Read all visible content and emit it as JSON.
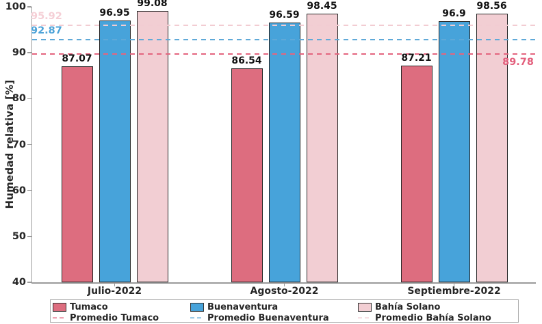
{
  "chart_data": {
    "type": "bar",
    "title": "",
    "ylabel": "Humedad relativa [%]",
    "xlabel": "",
    "ylim": [
      40,
      100
    ],
    "yticks": [
      100,
      90,
      80,
      70,
      60,
      50,
      40
    ],
    "categories": [
      "Julio-2022",
      "Agosto-2022",
      "Septiembre-2022"
    ],
    "series": [
      {
        "name": "Tumaco",
        "color": "#dd6d7f",
        "values": [
          87.07,
          86.54,
          87.21
        ]
      },
      {
        "name": "Buenaventura",
        "color": "#47a3da",
        "values": [
          96.95,
          96.59,
          96.9
        ]
      },
      {
        "name": "Bahía Solano",
        "color": "#f2ced3",
        "values": [
          99.08,
          98.45,
          98.56
        ]
      }
    ],
    "avg_lines": [
      {
        "name": "Promedio Tumaco",
        "value": 89.78,
        "label": "89.78",
        "color": "#e4647e",
        "label_color": "#e35f7c",
        "label_side": "right"
      },
      {
        "name": "Promedio Buenaventura",
        "value": 92.87,
        "label": "92.87",
        "color": "#5fa9d8",
        "label_color": "#4da3d8",
        "label_side": "left"
      },
      {
        "name": "Promedio Bahía Solano",
        "value": 95.92,
        "label": "95.92",
        "color": "#f2ccd2",
        "label_color": "#f5cfd6",
        "label_side": "left"
      }
    ],
    "legend_position": "bottom",
    "grid": false
  },
  "styles": {
    "background": "#ffffff",
    "axis_color": "#9a9a9a",
    "text_color": "#262626",
    "bar_edge_color": "#262626",
    "legend_border_color": "#ababab"
  }
}
